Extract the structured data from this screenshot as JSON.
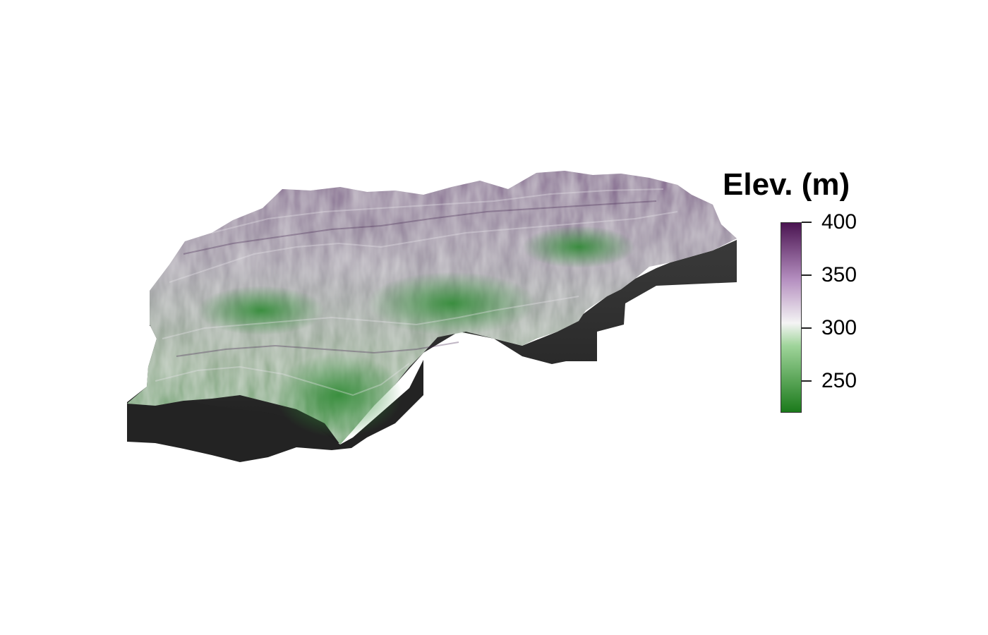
{
  "legend": {
    "title": "Elev. (m)",
    "ticks": [
      {
        "value": 400,
        "label": "400"
      },
      {
        "value": 350,
        "label": "350"
      },
      {
        "value": 300,
        "label": "300"
      },
      {
        "value": 250,
        "label": "250"
      }
    ],
    "range": [
      220,
      400
    ],
    "colors": {
      "low": "#1b7a1b",
      "mid": "#f4f4f4",
      "high": "#4a1451"
    }
  },
  "surface_colors": {
    "shadow": "#2b2b2b",
    "green": "#3f9a42",
    "gray": "#a8aaa4",
    "purple": "#6e4a7c"
  }
}
